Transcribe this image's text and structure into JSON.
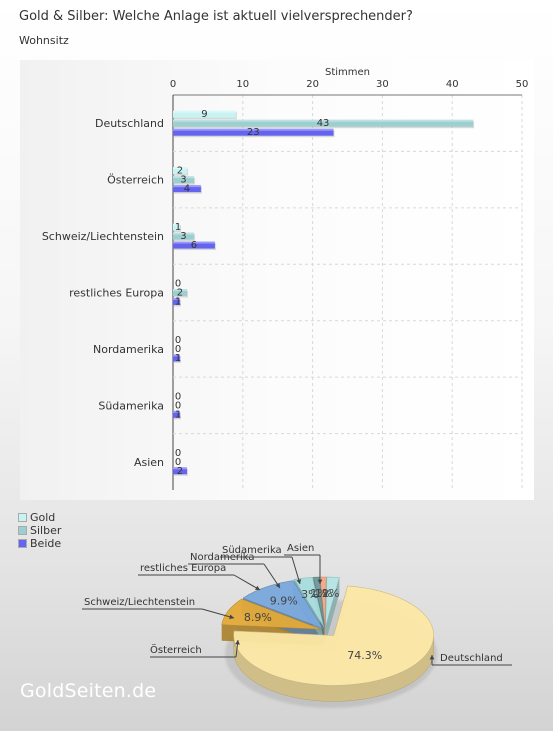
{
  "title": "Gold & Silber: Welche Anlage ist aktuell vielversprechender?",
  "subtitle": "Wohnsitz",
  "watermark": "GoldSeiten.de",
  "chart_data": [
    {
      "type": "bar",
      "orientation": "horizontal",
      "xlabel": "Stimmen",
      "xlim": [
        0,
        50
      ],
      "xticks": [
        0,
        10,
        20,
        30,
        40,
        50
      ],
      "grid": true,
      "categories": [
        "Deutschland",
        "Österreich",
        "Schweiz/Liechtenstein",
        "restliches Europa",
        "Nordamerika",
        "Südamerika",
        "Asien"
      ],
      "series": [
        {
          "name": "Gold",
          "color": "#c8f3f3",
          "values": [
            9,
            2,
            1,
            0,
            0,
            0,
            0
          ]
        },
        {
          "name": "Silber",
          "color": "#9ccfcf",
          "values": [
            43,
            3,
            3,
            2,
            0,
            0,
            0
          ]
        },
        {
          "name": "Beide",
          "color": "#6464f0",
          "values": [
            23,
            4,
            6,
            1,
            1,
            1,
            2
          ]
        }
      ],
      "legend": "bottom-left"
    },
    {
      "type": "pie",
      "slices": [
        {
          "label": "Deutschland",
          "value": 74.3,
          "value_label": "74.3%",
          "color": "#fde8a6"
        },
        {
          "label": "Österreich",
          "value": 8.9,
          "value_label": "8.9%",
          "color": "#e3aa38"
        },
        {
          "label": "Schweiz/Liechtenstein",
          "value": 9.9,
          "value_label": "9.9%",
          "color": "#79a8dc"
        },
        {
          "label": "restliches Europa",
          "value": 3.0,
          "value_label": "3%",
          "color": "#a8dede"
        },
        {
          "label": "Nordamerika",
          "value": 1.0,
          "value_label": "1%",
          "color": "#6e9a9a"
        },
        {
          "label": "Südamerika",
          "value": 1.0,
          "value_label": "1%",
          "color": "#f2aa88"
        },
        {
          "label": "Asien",
          "value": 2.0,
          "value_label": "2%",
          "color": "#b5e6e6"
        }
      ]
    }
  ]
}
